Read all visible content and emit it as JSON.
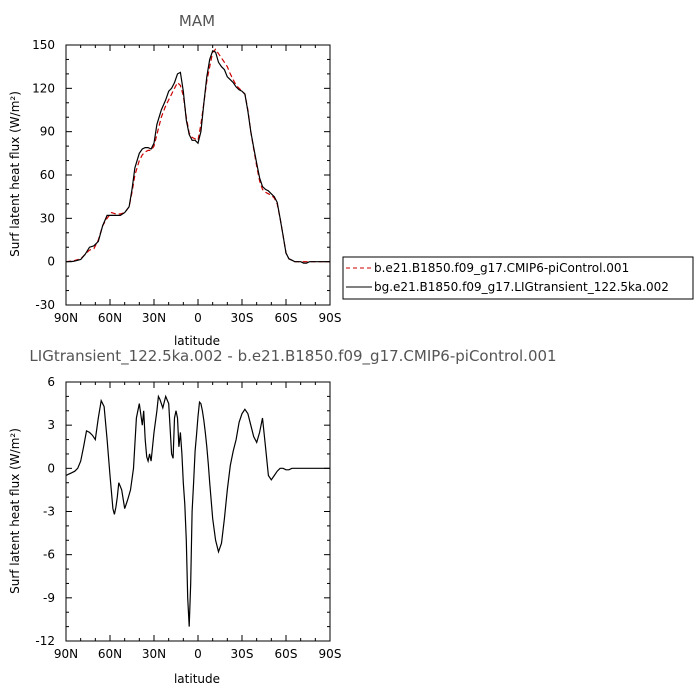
{
  "chart_data": [
    {
      "type": "line",
      "title": "MAM",
      "xlabel": "latitude",
      "ylabel": "Surf latent heat flux (W/m²)",
      "x_ticks": [
        {
          "value": 90,
          "label": "90N"
        },
        {
          "value": 60,
          "label": "60N"
        },
        {
          "value": 30,
          "label": "30N"
        },
        {
          "value": 0,
          "label": "0"
        },
        {
          "value": -30,
          "label": "30S"
        },
        {
          "value": -60,
          "label": "60S"
        },
        {
          "value": -90,
          "label": "90S"
        }
      ],
      "xlim": [
        90,
        -90
      ],
      "ylim": [
        -30,
        150
      ],
      "y_ticks": [
        -30,
        0,
        30,
        60,
        90,
        120,
        150
      ],
      "grid": false,
      "legend_placement": "right",
      "series": [
        {
          "name": "b.e21.B1850.f09_g17.CMIP6-piControl.001",
          "color": "#cc0000",
          "dash": true,
          "x": [
            90,
            85,
            80,
            77,
            74,
            71,
            68,
            65,
            62,
            59,
            56,
            53,
            50,
            47,
            45,
            43,
            40,
            38,
            36,
            34,
            32,
            30,
            28,
            25,
            22,
            20,
            18,
            16,
            14,
            12,
            10,
            8,
            6,
            4,
            2,
            0,
            -2,
            -4,
            -6,
            -8,
            -10,
            -12,
            -14,
            -16,
            -18,
            -20,
            -22,
            -24,
            -26,
            -28,
            -30,
            -32,
            -34,
            -36,
            -38,
            -40,
            -42,
            -44,
            -46,
            -48,
            -50,
            -52,
            -54,
            -56,
            -58,
            -60,
            -62,
            -64,
            -66,
            -68,
            -70,
            -72,
            -74,
            -76,
            -78,
            -80,
            -83,
            -86,
            -90
          ],
          "y": [
            0,
            0.5,
            2,
            5,
            8,
            9,
            15,
            25,
            30,
            34,
            33,
            33,
            34,
            38,
            48,
            60,
            70,
            74,
            76,
            77,
            77,
            80,
            88,
            100,
            108,
            112,
            116,
            120,
            124,
            122,
            115,
            100,
            89,
            86,
            85,
            84,
            95,
            110,
            125,
            135,
            145,
            147,
            144,
            141,
            138,
            135,
            130,
            126,
            122,
            120,
            118,
            116,
            105,
            90,
            78,
            66,
            56,
            50,
            48,
            47,
            46,
            44,
            40,
            30,
            18,
            6,
            2,
            1,
            0,
            0,
            0,
            0,
            0,
            0,
            0,
            0,
            0,
            0,
            0
          ]
        },
        {
          "name": "bg.e21.B1850.f09_g17.LIGtransient_122.5ka.002",
          "color": "#000000",
          "dash": false,
          "x": [
            90,
            85,
            80,
            77,
            74,
            71,
            68,
            65,
            62,
            59,
            56,
            53,
            50,
            47,
            45,
            43,
            40,
            38,
            36,
            34,
            32,
            30,
            28,
            25,
            22,
            20,
            18,
            16,
            14,
            12,
            10,
            8,
            6,
            4,
            2,
            0,
            -2,
            -4,
            -6,
            -8,
            -10,
            -12,
            -14,
            -16,
            -18,
            -20,
            -22,
            -24,
            -26,
            -28,
            -30,
            -32,
            -34,
            -36,
            -38,
            -40,
            -42,
            -44,
            -46,
            -48,
            -50,
            -52,
            -54,
            -56,
            -58,
            -60,
            -62,
            -64,
            -66,
            -68,
            -70,
            -72,
            -74,
            -76,
            -78,
            -80,
            -83,
            -86,
            -90
          ],
          "y": [
            0,
            0.2,
            1.5,
            5,
            10,
            11,
            14,
            25,
            32,
            32,
            32,
            32,
            34,
            38,
            50,
            65,
            75,
            78,
            79,
            79,
            78,
            82,
            95,
            105,
            112,
            118,
            120,
            124,
            130,
            131,
            118,
            98,
            88,
            84,
            84,
            82,
            90,
            110,
            128,
            140,
            146,
            145,
            138,
            135,
            133,
            128,
            126,
            124,
            121,
            119,
            118,
            116,
            104,
            90,
            79,
            68,
            58,
            52,
            50,
            49,
            47,
            45,
            41,
            30,
            18,
            6,
            2,
            1,
            0,
            0,
            0,
            -1,
            -1,
            0,
            0,
            0,
            0,
            0,
            0
          ]
        }
      ]
    },
    {
      "type": "line",
      "title": "LIGtransient_122.5ka.002 - b.e21.B1850.f09_g17.CMIP6-piControl.001",
      "xlabel": "latitude",
      "ylabel": "Surf latent heat flux (W/m²)",
      "x_ticks": [
        {
          "value": 90,
          "label": "90N"
        },
        {
          "value": 60,
          "label": "60N"
        },
        {
          "value": 30,
          "label": "30N"
        },
        {
          "value": 0,
          "label": "0"
        },
        {
          "value": -30,
          "label": "30S"
        },
        {
          "value": -60,
          "label": "60S"
        },
        {
          "value": -90,
          "label": "90S"
        }
      ],
      "xlim": [
        90,
        -90
      ],
      "ylim": [
        -12,
        6
      ],
      "y_ticks": [
        -12,
        -9,
        -6,
        -3,
        0,
        3,
        6
      ],
      "grid": false,
      "series": [
        {
          "color": "#000000",
          "x": [
            90,
            88,
            86,
            84,
            82,
            80,
            78,
            76,
            74,
            72,
            70,
            68,
            66,
            64,
            62,
            60,
            58,
            57,
            56,
            55,
            54,
            52,
            50,
            48,
            46,
            44,
            42,
            40,
            38,
            37,
            36,
            35,
            34,
            33,
            32,
            30,
            28,
            27,
            26,
            24,
            22,
            20,
            18,
            17,
            16,
            15,
            14,
            13,
            12,
            11,
            10,
            9,
            8,
            7,
            6,
            5,
            4,
            3,
            2,
            1,
            0,
            -1,
            -2,
            -3,
            -4,
            -5,
            -6,
            -7,
            -8,
            -10,
            -12,
            -14,
            -16,
            -18,
            -20,
            -22,
            -24,
            -26,
            -28,
            -30,
            -32,
            -34,
            -36,
            -38,
            -40,
            -42,
            -44,
            -46,
            -48,
            -50,
            -52,
            -54,
            -56,
            -58,
            -60,
            -62,
            -64,
            -66,
            -68,
            -70,
            -72,
            -74,
            -76,
            -78,
            -80,
            -82,
            -84,
            -86,
            -88,
            -90
          ],
          "y": [
            -0.5,
            -0.4,
            -0.3,
            -0.2,
            0,
            0.5,
            1.5,
            2.6,
            2.5,
            2.3,
            2.0,
            3.5,
            4.7,
            4.3,
            2.0,
            -0.5,
            -2.8,
            -3.2,
            -2.7,
            -2.0,
            -1.0,
            -1.5,
            -2.8,
            -2.2,
            -1.5,
            0,
            3.5,
            4.5,
            3.0,
            4.0,
            2.0,
            0.8,
            0.5,
            1.0,
            0.5,
            2.5,
            4.0,
            5.0,
            4.8,
            4.2,
            5.0,
            4.5,
            1.0,
            0.7,
            3.5,
            4.0,
            3.5,
            1.5,
            2.5,
            1.0,
            -1.0,
            -2.5,
            -5.0,
            -9.0,
            -11.0,
            -8.0,
            -3.0,
            -1.0,
            1.2,
            2.3,
            3.6,
            4.6,
            4.5,
            4.0,
            3.3,
            2.5,
            1.5,
            0.3,
            -1.0,
            -3.5,
            -5.0,
            -5.8,
            -5.2,
            -3.5,
            -1.5,
            0.2,
            1.2,
            2.0,
            3.2,
            3.8,
            4.1,
            3.8,
            3.0,
            2.2,
            1.8,
            2.5,
            3.5,
            1.5,
            -0.5,
            -0.8,
            -0.5,
            -0.2,
            0,
            0,
            -0.1,
            -0.1,
            0,
            0,
            0,
            0,
            0,
            0,
            0,
            0,
            0,
            0,
            0,
            0,
            0,
            0
          ]
        }
      ]
    }
  ]
}
